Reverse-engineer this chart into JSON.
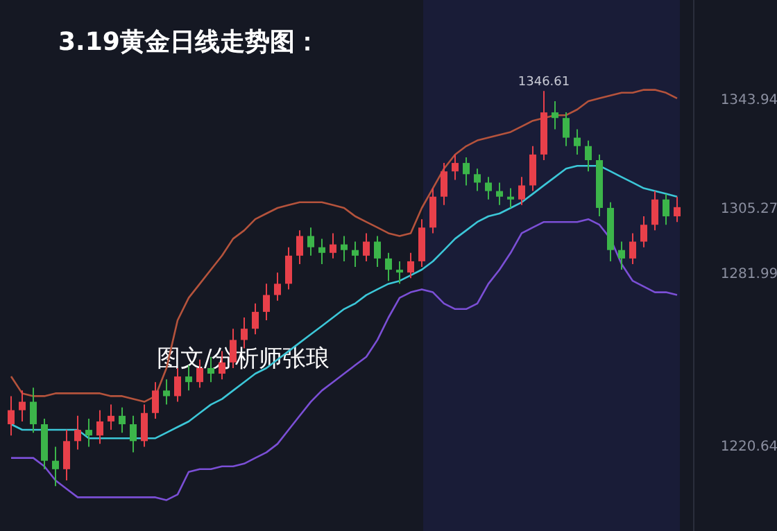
{
  "chart_data": {
    "type": "candlestick",
    "title": "3.19黄金日线走势图：",
    "annotations": [
      {
        "text": "1346.61",
        "y": 1346.61
      },
      "图文/分析师张琅"
    ],
    "categories": [
      null,
      null,
      null,
      null,
      null,
      null,
      null,
      null,
      null,
      null,
      null,
      null,
      null,
      null,
      null,
      null,
      null,
      null,
      null,
      null,
      null,
      null,
      null,
      null,
      null,
      null,
      null,
      null,
      null,
      null,
      null,
      null,
      null,
      null,
      null,
      null,
      null,
      null,
      null,
      null,
      null,
      null,
      null,
      null,
      null,
      null,
      null,
      null,
      null,
      null,
      null,
      null,
      null,
      null,
      null,
      null,
      null,
      null,
      null,
      null,
      null
    ],
    "ohlc": [
      [
        1228,
        1238,
        1224,
        1233
      ],
      [
        1233,
        1240,
        1229,
        1236
      ],
      [
        1236,
        1241,
        1225,
        1228
      ],
      [
        1228,
        1230,
        1212,
        1215
      ],
      [
        1215,
        1220,
        1206,
        1212
      ],
      [
        1212,
        1226,
        1208,
        1222
      ],
      [
        1222,
        1231,
        1219,
        1226
      ],
      [
        1226,
        1230,
        1220,
        1224
      ],
      [
        1224,
        1233,
        1221,
        1229
      ],
      [
        1229,
        1235,
        1226,
        1231
      ],
      [
        1231,
        1234,
        1225,
        1228
      ],
      [
        1228,
        1231,
        1218,
        1222
      ],
      [
        1222,
        1235,
        1220,
        1232
      ],
      [
        1232,
        1243,
        1230,
        1240
      ],
      [
        1240,
        1244,
        1235,
        1238
      ],
      [
        1238,
        1248,
        1236,
        1245
      ],
      [
        1245,
        1249,
        1240,
        1243
      ],
      [
        1243,
        1251,
        1241,
        1248
      ],
      [
        1248,
        1252,
        1243,
        1246
      ],
      [
        1246,
        1254,
        1244,
        1250
      ],
      [
        1250,
        1262,
        1248,
        1258
      ],
      [
        1258,
        1266,
        1255,
        1262
      ],
      [
        1262,
        1271,
        1260,
        1268
      ],
      [
        1268,
        1278,
        1265,
        1274
      ],
      [
        1274,
        1282,
        1272,
        1278
      ],
      [
        1278,
        1291,
        1276,
        1288
      ],
      [
        1288,
        1297,
        1285,
        1295
      ],
      [
        1295,
        1298,
        1288,
        1291
      ],
      [
        1291,
        1294,
        1285,
        1289
      ],
      [
        1289,
        1296,
        1287,
        1292
      ],
      [
        1292,
        1295,
        1286,
        1290
      ],
      [
        1290,
        1293,
        1284,
        1288
      ],
      [
        1288,
        1296,
        1286,
        1293
      ],
      [
        1293,
        1295,
        1284,
        1287
      ],
      [
        1287,
        1289,
        1279,
        1283
      ],
      [
        1283,
        1286,
        1278,
        1282
      ],
      [
        1282,
        1289,
        1280,
        1286
      ],
      [
        1286,
        1301,
        1284,
        1298
      ],
      [
        1298,
        1312,
        1296,
        1309
      ],
      [
        1309,
        1321,
        1306,
        1318
      ],
      [
        1318,
        1324,
        1315,
        1321
      ],
      [
        1321,
        1323,
        1313,
        1317
      ],
      [
        1317,
        1319,
        1311,
        1314
      ],
      [
        1314,
        1316,
        1308,
        1311
      ],
      [
        1311,
        1314,
        1306,
        1309
      ],
      [
        1309,
        1312,
        1305,
        1308
      ],
      [
        1308,
        1316,
        1306,
        1313
      ],
      [
        1313,
        1327,
        1311,
        1324
      ],
      [
        1324,
        1346.61,
        1322,
        1339
      ],
      [
        1339,
        1343,
        1333,
        1337
      ],
      [
        1337,
        1339,
        1327,
        1330
      ],
      [
        1330,
        1333,
        1324,
        1327
      ],
      [
        1327,
        1329,
        1318,
        1322
      ],
      [
        1322,
        1324,
        1302,
        1305
      ],
      [
        1305,
        1307,
        1286,
        1290
      ],
      [
        1290,
        1293,
        1283,
        1287
      ],
      [
        1287,
        1296,
        1285,
        1293
      ],
      [
        1293,
        1302,
        1291,
        1299
      ],
      [
        1299,
        1311,
        1297,
        1308
      ],
      [
        1308,
        1310,
        1299,
        1302
      ],
      [
        1302,
        1309,
        1300,
        1305.27
      ]
    ],
    "series": [
      {
        "type": "line",
        "color": "#b5533c",
        "values": [
          1245,
          1239,
          1238,
          1238,
          1239,
          1239,
          1239,
          1239,
          1239,
          1238,
          1238,
          1237,
          1236,
          1238,
          1248,
          1265,
          1273,
          1278,
          1283,
          1288,
          1294,
          1297,
          1301,
          1303,
          1305,
          1306,
          1307,
          1307,
          1307,
          1306,
          1305,
          1302,
          1300,
          1298,
          1296,
          1295,
          1296,
          1305,
          1312,
          1319,
          1324,
          1327,
          1329,
          1330,
          1331,
          1332,
          1334,
          1336,
          1337,
          1338,
          1338,
          1340,
          1343,
          1344,
          1345,
          1346,
          1346,
          1347,
          1347,
          1346,
          1344
        ]
      },
      {
        "type": "line",
        "color": "#7b4fd6",
        "values": [
          1216,
          1216,
          1216,
          1213,
          1208,
          1205,
          1202,
          1202,
          1202,
          1202,
          1202,
          1202,
          1202,
          1202,
          1201,
          1203,
          1211,
          1212,
          1212,
          1213,
          1213,
          1214,
          1216,
          1218,
          1221,
          1226,
          1231,
          1236,
          1240,
          1243,
          1246,
          1249,
          1252,
          1258,
          1266,
          1273,
          1275,
          1276,
          1275,
          1271,
          1269,
          1269,
          1271,
          1278,
          1283,
          1289,
          1296,
          1298,
          1300,
          1300,
          1300,
          1300,
          1301,
          1299,
          1294,
          1285,
          1279,
          1277,
          1275,
          1275,
          1274
        ]
      },
      {
        "type": "line",
        "color": "#3cc7d8",
        "values": [
          1228,
          1226,
          1226,
          1226,
          1226,
          1226,
          1226,
          1223,
          1223,
          1223,
          1223,
          1223,
          1223,
          1223,
          1225,
          1227,
          1229,
          1232,
          1235,
          1237,
          1240,
          1243,
          1246,
          1248,
          1251,
          1254,
          1257,
          1260,
          1263,
          1266,
          1269,
          1271,
          1274,
          1276,
          1278,
          1279,
          1281,
          1283,
          1286,
          1290,
          1294,
          1297,
          1300,
          1302,
          1303,
          1305,
          1307,
          1310,
          1313,
          1316,
          1319,
          1320,
          1320,
          1320,
          1318,
          1316,
          1314,
          1312,
          1311,
          1310,
          1309
        ]
      }
    ],
    "ylim": [
      1190,
      1379
    ],
    "yticks": [
      1343.94,
      1305.27,
      1281.99,
      1220.64
    ]
  }
}
